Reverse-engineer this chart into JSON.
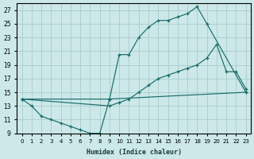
{
  "xlabel": "Humidex (Indice chaleur)",
  "bg_color": "#cce8e8",
  "grid_color": "#aacccc",
  "line_color": "#1a6b6b",
  "xlim": [
    -0.5,
    23.5
  ],
  "ylim": [
    9,
    28
  ],
  "xticks": [
    0,
    1,
    2,
    3,
    4,
    5,
    6,
    7,
    8,
    9,
    10,
    11,
    12,
    13,
    14,
    15,
    16,
    17,
    18,
    19,
    20,
    21,
    22,
    23
  ],
  "yticks": [
    9,
    11,
    13,
    15,
    17,
    19,
    21,
    23,
    25,
    27
  ],
  "series": [
    {
      "x": [
        0,
        1,
        2,
        3,
        4,
        5,
        6,
        7,
        8,
        9,
        23
      ],
      "y": [
        14,
        13,
        11.5,
        11,
        10.5,
        10,
        9.5,
        9,
        9,
        14,
        15
      ]
    },
    {
      "x": [
        0,
        9,
        10,
        11,
        12,
        13,
        14,
        15,
        16,
        17,
        18,
        19,
        23
      ],
      "y": [
        14,
        14,
        20.5,
        20.5,
        23,
        24.5,
        25.5,
        25.5,
        26,
        26.5,
        27.5,
        25,
        15
      ]
    },
    {
      "x": [
        0,
        9,
        10,
        11,
        12,
        13,
        14,
        15,
        16,
        17,
        18,
        19,
        20,
        21,
        22,
        23
      ],
      "y": [
        14,
        13,
        13.5,
        14,
        15,
        16,
        17,
        17.5,
        18,
        18.5,
        19,
        20,
        22,
        18,
        18,
        15.5
      ]
    }
  ]
}
